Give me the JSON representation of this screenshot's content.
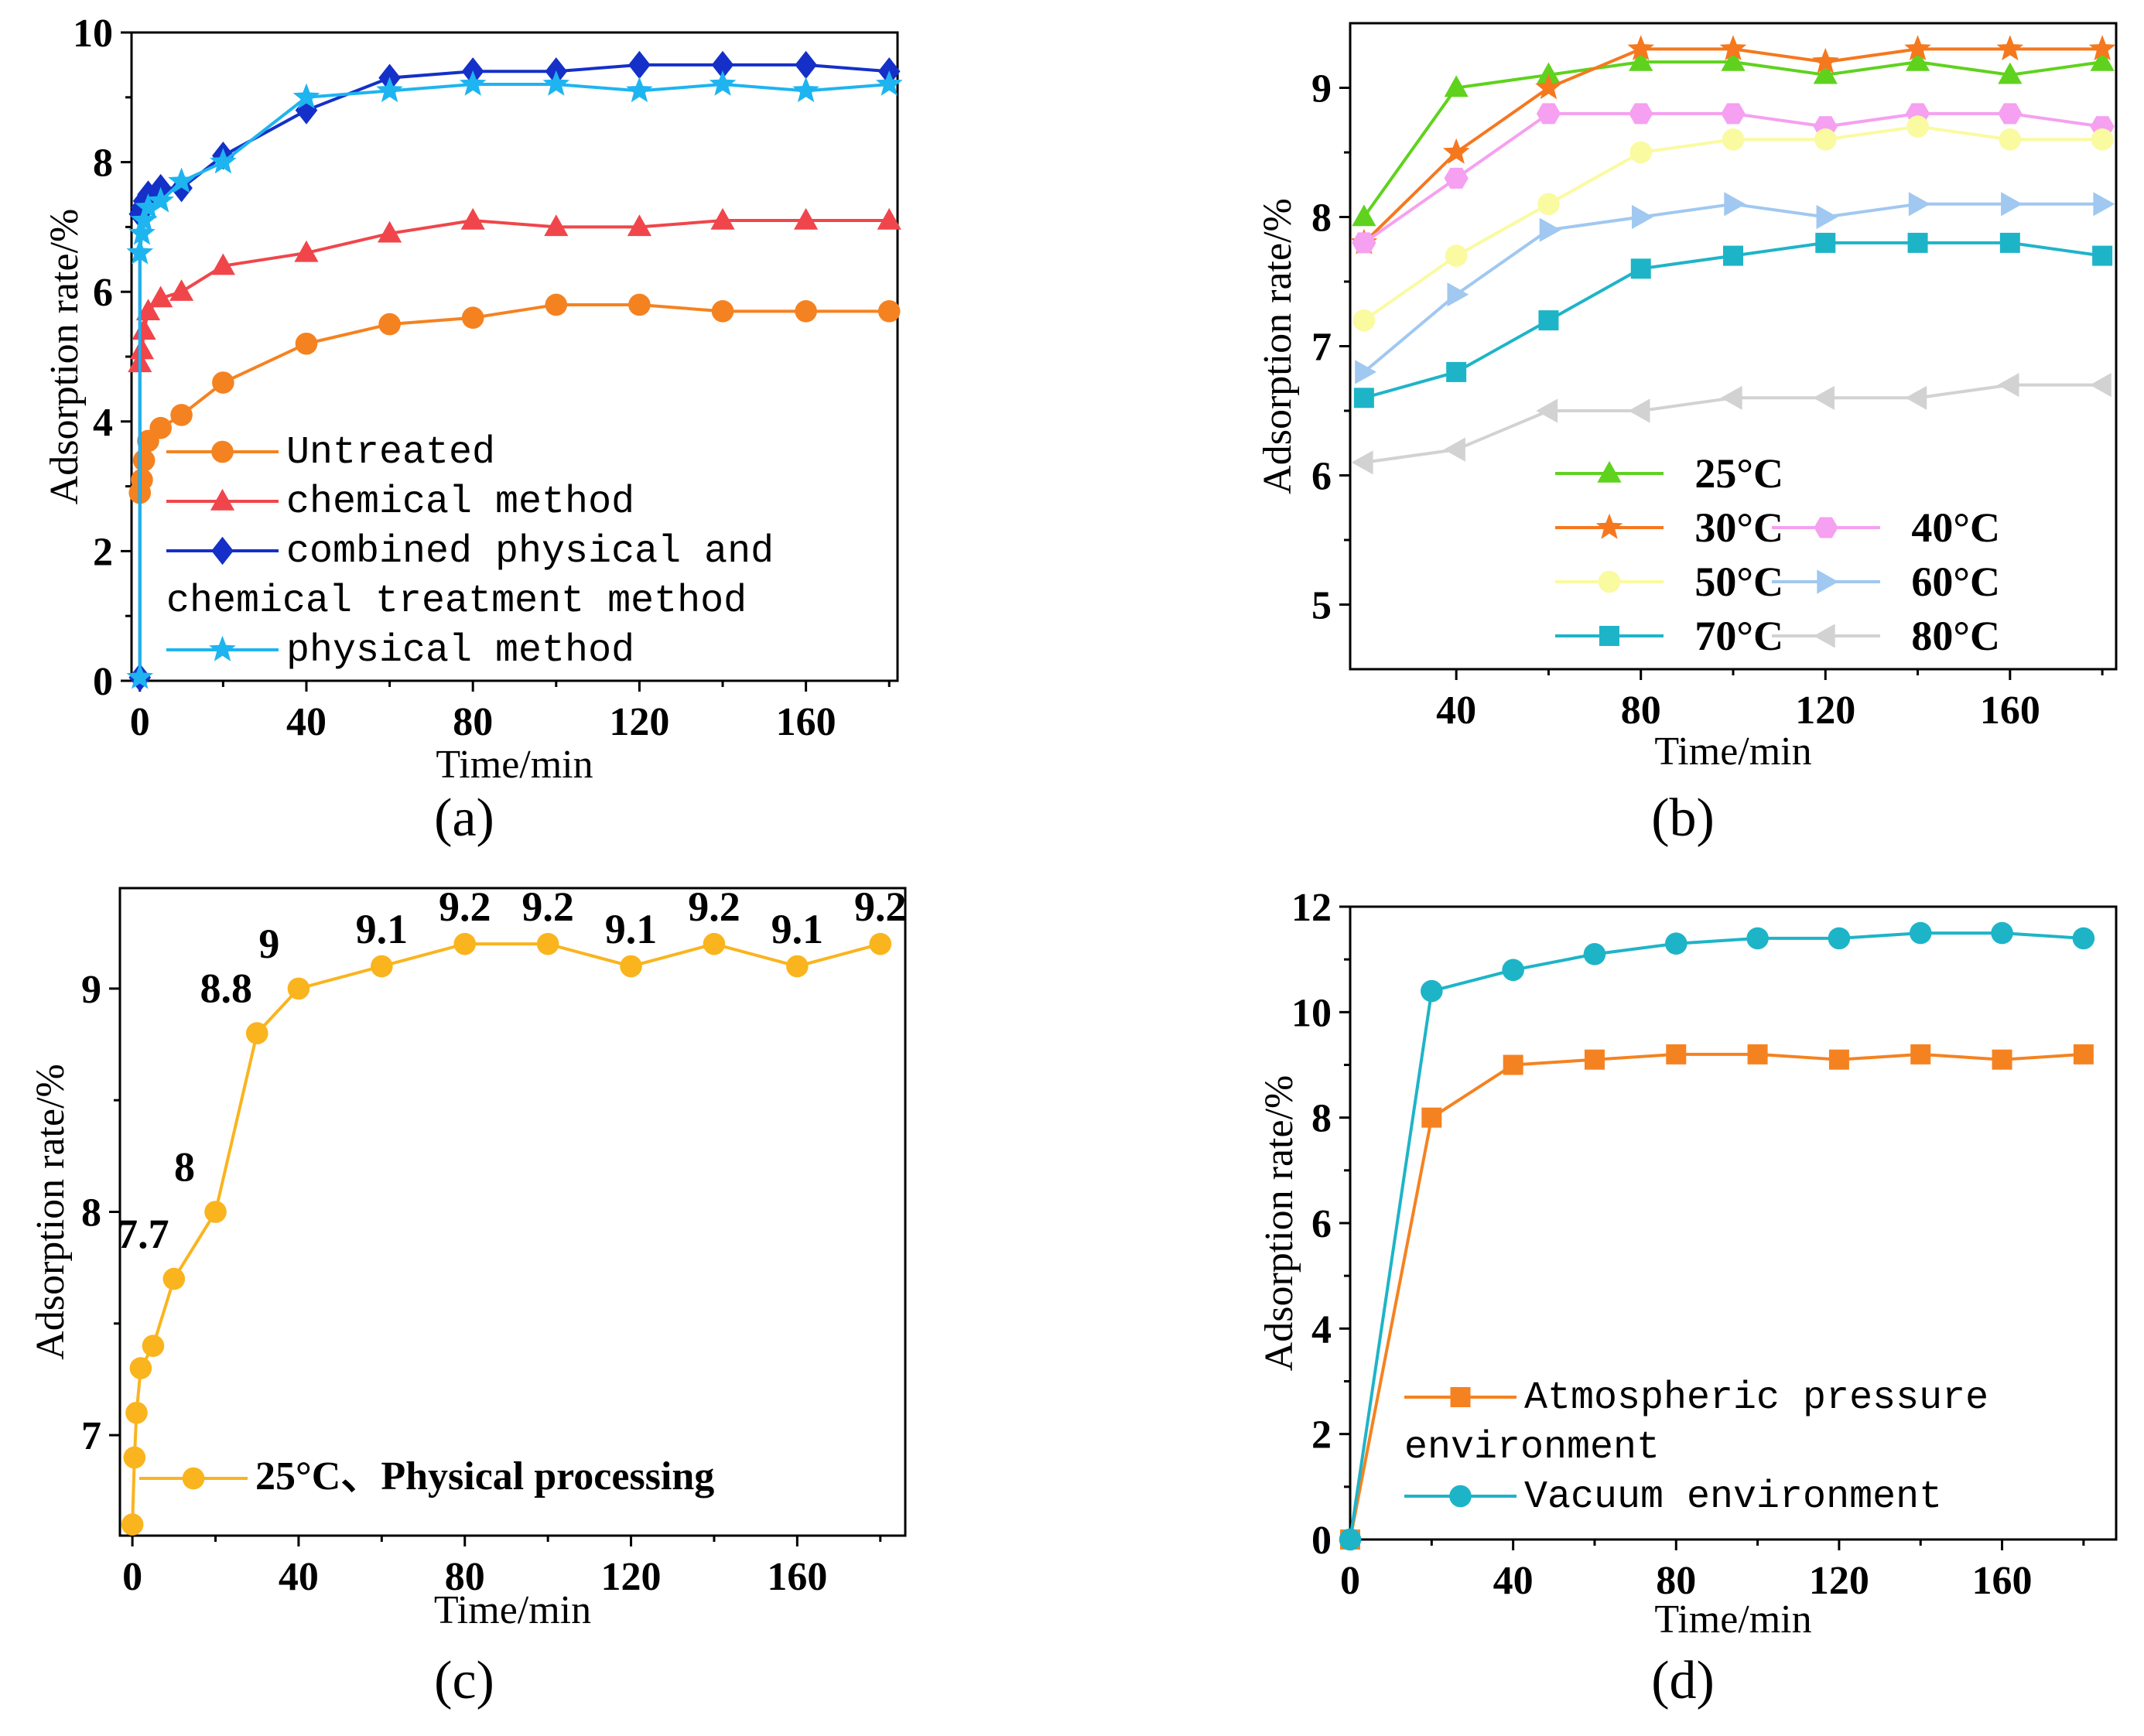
{
  "chart_data": [
    {
      "id": "a",
      "type": "line",
      "caption": "(a)",
      "xlabel": "Time/min",
      "ylabel": "Adsorption rate/%",
      "xlim": [
        -2,
        182
      ],
      "ylim": [
        0,
        10
      ],
      "xticks": [
        0,
        40,
        80,
        120,
        160
      ],
      "yticks": [
        0,
        2,
        4,
        6,
        8,
        10
      ],
      "legend_font": "mono",
      "series": [
        {
          "name": "Untreated",
          "legend_lines": [
            "Untreated"
          ],
          "color": "#f58220",
          "marker": "circle",
          "x": [
            0,
            0.5,
            1,
            2,
            5,
            10,
            20,
            40,
            60,
            80,
            100,
            120,
            140,
            160,
            180
          ],
          "y": [
            2.9,
            3.1,
            3.4,
            3.7,
            3.9,
            4.1,
            4.6,
            5.2,
            5.5,
            5.6,
            5.8,
            5.8,
            5.7,
            5.7,
            5.7
          ]
        },
        {
          "name": "chemical method",
          "legend_lines": [
            "chemical method"
          ],
          "color": "#f0464b",
          "marker": "triangle",
          "x": [
            0,
            0.5,
            1,
            2,
            5,
            10,
            20,
            40,
            60,
            80,
            100,
            120,
            140,
            160,
            180
          ],
          "y": [
            4.9,
            5.1,
            5.4,
            5.7,
            5.9,
            6.0,
            6.4,
            6.6,
            6.9,
            7.1,
            7.0,
            7.0,
            7.1,
            7.1,
            7.1
          ]
        },
        {
          "name": "combined physical and chemical treatment method",
          "legend_lines": [
            "combined physical and",
            "chemical treatment method"
          ],
          "color": "#1430c8",
          "marker": "diamond",
          "x": [
            0,
            0,
            0.5,
            1,
            2,
            5,
            10,
            20,
            40,
            60,
            80,
            100,
            120,
            140,
            160,
            180
          ],
          "y": [
            0.05,
            7.2,
            7.3,
            7.4,
            7.5,
            7.6,
            7.6,
            8.1,
            8.8,
            9.3,
            9.4,
            9.4,
            9.5,
            9.5,
            9.5,
            9.4
          ]
        },
        {
          "name": "physical method",
          "legend_lines": [
            "physical method"
          ],
          "color": "#1eb4f0",
          "marker": "star",
          "x": [
            0,
            0,
            0.5,
            1,
            2,
            5,
            10,
            20,
            40,
            60,
            80,
            100,
            120,
            140,
            160,
            180
          ],
          "y": [
            0.05,
            6.6,
            6.9,
            7.1,
            7.3,
            7.4,
            7.7,
            8.0,
            9.0,
            9.1,
            9.2,
            9.2,
            9.1,
            9.2,
            9.1,
            9.2
          ]
        }
      ]
    },
    {
      "id": "b",
      "type": "line",
      "caption": "(b)",
      "xlabel": "Time/min",
      "ylabel": "Adsorption rate/%",
      "xlim": [
        17,
        183
      ],
      "ylim": [
        4.5,
        9.5
      ],
      "xticks": [
        40,
        80,
        120,
        160
      ],
      "yticks": [
        5,
        6,
        7,
        8,
        9
      ],
      "legend_font": "serif-bold",
      "series": [
        {
          "name": "25°C",
          "color": "#5fd21e",
          "marker": "triangle",
          "x": [
            20,
            40,
            60,
            80,
            100,
            120,
            140,
            160,
            180
          ],
          "y": [
            8.0,
            9.0,
            9.1,
            9.2,
            9.2,
            9.1,
            9.2,
            9.1,
            9.2
          ]
        },
        {
          "name": "30°C",
          "color": "#f5781e",
          "marker": "star",
          "x": [
            20,
            40,
            60,
            80,
            100,
            120,
            140,
            160,
            180
          ],
          "y": [
            7.8,
            8.5,
            9.0,
            9.3,
            9.3,
            9.2,
            9.3,
            9.3,
            9.3
          ]
        },
        {
          "name": "40°C",
          "color": "#f5a0f0",
          "marker": "hexagon",
          "x": [
            20,
            40,
            60,
            80,
            100,
            120,
            140,
            160,
            180
          ],
          "y": [
            7.8,
            8.3,
            8.8,
            8.8,
            8.8,
            8.7,
            8.8,
            8.8,
            8.7
          ]
        },
        {
          "name": "50°C",
          "color": "#fafaa0",
          "marker": "circle",
          "x": [
            20,
            40,
            60,
            80,
            100,
            120,
            140,
            160,
            180
          ],
          "y": [
            7.2,
            7.7,
            8.1,
            8.5,
            8.6,
            8.6,
            8.7,
            8.6,
            8.6
          ]
        },
        {
          "name": "60°C",
          "color": "#a0c8f0",
          "marker": "triangle-right",
          "x": [
            20,
            40,
            60,
            80,
            100,
            120,
            140,
            160,
            180
          ],
          "y": [
            6.8,
            7.4,
            7.9,
            8.0,
            8.1,
            8.0,
            8.1,
            8.1,
            8.1
          ]
        },
        {
          "name": "70°C",
          "color": "#1eb4c8",
          "marker": "square",
          "x": [
            20,
            40,
            60,
            80,
            100,
            120,
            140,
            160,
            180
          ],
          "y": [
            6.6,
            6.8,
            7.2,
            7.6,
            7.7,
            7.8,
            7.8,
            7.8,
            7.7
          ]
        },
        {
          "name": "80°C",
          "color": "#d2d2d2",
          "marker": "triangle-left",
          "x": [
            20,
            40,
            60,
            80,
            100,
            120,
            140,
            160,
            180
          ],
          "y": [
            6.1,
            6.2,
            6.5,
            6.5,
            6.6,
            6.6,
            6.6,
            6.7,
            6.7
          ]
        }
      ]
    },
    {
      "id": "c",
      "type": "line",
      "caption": "(c)",
      "xlabel": "Time/min",
      "ylabel": "Adsorption rate/%",
      "xlim": [
        -3,
        186
      ],
      "ylim": [
        6.55,
        9.45
      ],
      "xticks": [
        0,
        40,
        80,
        120,
        160
      ],
      "yticks": [
        7,
        8,
        9
      ],
      "legend_font": "serif-bold",
      "series": [
        {
          "name": "25°C、Physical processing",
          "color": "#fab41e",
          "marker": "circle",
          "x": [
            0,
            0.5,
            1,
            2,
            5,
            10,
            20,
            30,
            40,
            60,
            80,
            100,
            120,
            140,
            160,
            180
          ],
          "y": [
            6.6,
            6.9,
            7.1,
            7.3,
            7.4,
            7.7,
            8.0,
            8.8,
            9.0,
            9.1,
            9.2,
            9.2,
            9.1,
            9.2,
            9.1,
            9.2
          ]
        }
      ],
      "annotations": [
        {
          "x": 10,
          "y": 7.7,
          "text": "7.7"
        },
        {
          "x": 20,
          "y": 8.0,
          "text": "8"
        },
        {
          "x": 30,
          "y": 8.8,
          "text": "8.8"
        },
        {
          "x": 40,
          "y": 9.0,
          "text": "9"
        },
        {
          "x": 60,
          "y": 9.1,
          "text": "9.1"
        },
        {
          "x": 80,
          "y": 9.2,
          "text": "9.2"
        },
        {
          "x": 100,
          "y": 9.2,
          "text": "9.2"
        },
        {
          "x": 120,
          "y": 9.1,
          "text": "9.1"
        },
        {
          "x": 140,
          "y": 9.2,
          "text": "9.2"
        },
        {
          "x": 160,
          "y": 9.1,
          "text": "9.1"
        },
        {
          "x": 180,
          "y": 9.2,
          "text": "9.2"
        }
      ]
    },
    {
      "id": "d",
      "type": "line",
      "caption": "(d)",
      "xlabel": "Time/min",
      "ylabel": "Adsorption rate/%",
      "xlim": [
        0,
        188
      ],
      "ylim": [
        0,
        12
      ],
      "xticks": [
        0,
        40,
        80,
        120,
        160
      ],
      "yticks": [
        0,
        2,
        4,
        6,
        8,
        10,
        12
      ],
      "legend_font": "mono",
      "series": [
        {
          "name": "Atmospheric pressure environment",
          "legend_lines": [
            "Atmospheric pressure",
            "environment"
          ],
          "color": "#f58220",
          "marker": "square",
          "x": [
            0,
            20,
            40,
            60,
            80,
            100,
            120,
            140,
            160,
            180
          ],
          "y": [
            0,
            8.0,
            9.0,
            9.1,
            9.2,
            9.2,
            9.1,
            9.2,
            9.1,
            9.2
          ]
        },
        {
          "name": "Vacuum environment",
          "legend_lines": [
            "Vacuum environment"
          ],
          "color": "#1eb4c8",
          "marker": "circle",
          "x": [
            0,
            20,
            40,
            60,
            80,
            100,
            120,
            140,
            160,
            180
          ],
          "y": [
            0,
            10.4,
            10.8,
            11.1,
            11.3,
            11.4,
            11.4,
            11.5,
            11.5,
            11.4
          ]
        }
      ]
    }
  ]
}
